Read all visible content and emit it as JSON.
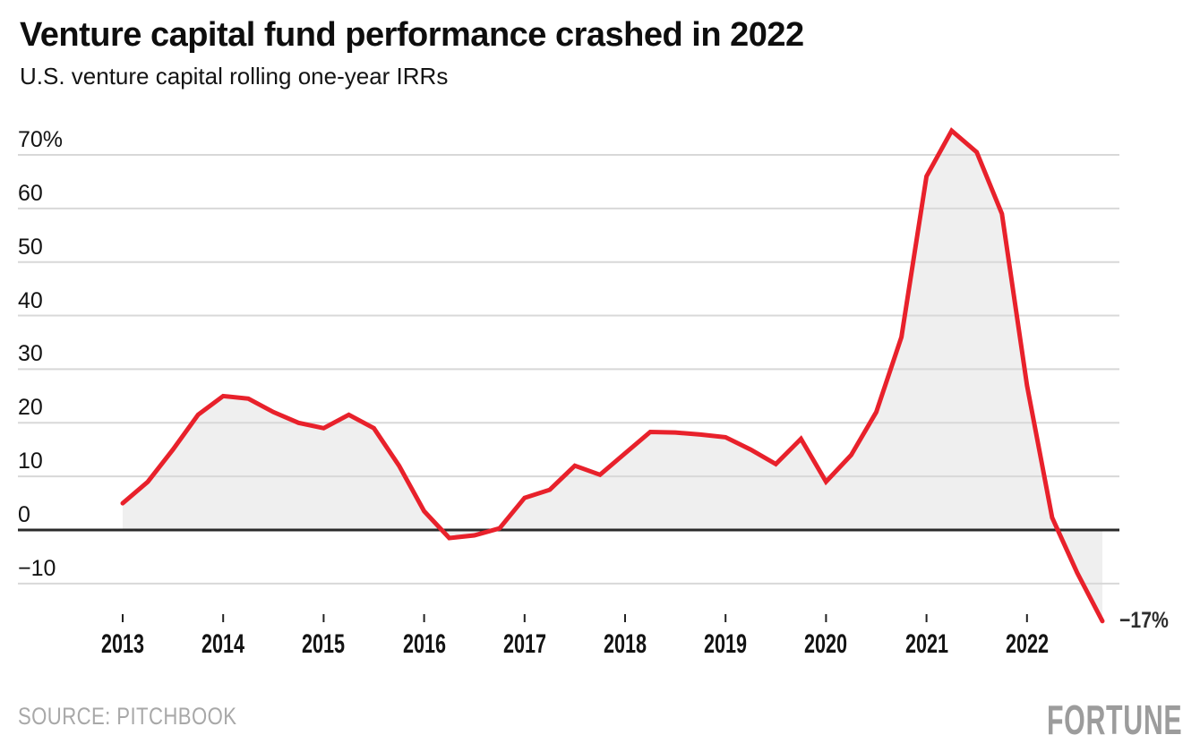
{
  "chart_data": {
    "type": "area",
    "title": "Venture capital fund performance crashed in 2022",
    "subtitle": "U.S. venture capital rolling one-year IRRs",
    "series_name": "U.S. venture capital rolling one-year IRR (%)",
    "x_unit": "quarter (decimal years)",
    "x": [
      2013.0,
      2013.25,
      2013.5,
      2013.75,
      2014.0,
      2014.25,
      2014.5,
      2014.75,
      2015.0,
      2015.25,
      2015.5,
      2015.75,
      2016.0,
      2016.25,
      2016.5,
      2016.75,
      2017.0,
      2017.25,
      2017.5,
      2017.75,
      2018.0,
      2018.25,
      2018.5,
      2018.75,
      2019.0,
      2019.25,
      2019.5,
      2019.75,
      2020.0,
      2020.25,
      2020.5,
      2020.75,
      2021.0,
      2021.25,
      2021.5,
      2021.75,
      2022.0,
      2022.25,
      2022.5,
      2022.75
    ],
    "values": [
      5,
      9,
      15,
      21.5,
      25,
      24.5,
      22,
      20,
      19,
      21.5,
      19,
      12,
      3.5,
      -1.5,
      -1,
      0.3,
      6,
      7.5,
      12,
      10.3,
      14.3,
      18.3,
      18.2,
      17.8,
      17.3,
      15,
      12.3,
      17,
      9,
      14,
      22,
      36,
      66,
      74.5,
      70.5,
      59,
      27,
      2.3,
      -8,
      -17
    ],
    "baseline": 0,
    "ylim": [
      -20,
      75
    ],
    "xlim": [
      2013,
      2022.75
    ],
    "grid": "horizontal",
    "legend": "none",
    "y_ticks": [
      {
        "value": 70,
        "label": "70%"
      },
      {
        "value": 60,
        "label": "60"
      },
      {
        "value": 50,
        "label": "50"
      },
      {
        "value": 40,
        "label": "40"
      },
      {
        "value": 30,
        "label": "30"
      },
      {
        "value": 20,
        "label": "20"
      },
      {
        "value": 10,
        "label": "10"
      },
      {
        "value": 0,
        "label": "0"
      },
      {
        "value": -10,
        "label": "−10"
      }
    ],
    "x_ticks": [
      {
        "value": 2013,
        "label": "2013"
      },
      {
        "value": 2014,
        "label": "2014"
      },
      {
        "value": 2015,
        "label": "2015"
      },
      {
        "value": 2016,
        "label": "2016"
      },
      {
        "value": 2017,
        "label": "2017"
      },
      {
        "value": 2018,
        "label": "2018"
      },
      {
        "value": 2019,
        "label": "2019"
      },
      {
        "value": 2020,
        "label": "2020"
      },
      {
        "value": 2021,
        "label": "2021"
      },
      {
        "value": 2022,
        "label": "2022"
      }
    ],
    "annotation": {
      "label": "−17%",
      "x": 2022.75,
      "value": -17
    },
    "colors": {
      "line": "#e8212b",
      "area_fill": "#efefef",
      "gridline": "#d8d8d8",
      "zero_line": "#2a2a2a",
      "tick_mark": "#222222",
      "axis_text": "#131313",
      "annotation_text": "#2e2e2e",
      "muted_text": "#a8a8a8",
      "logo_text": "#9c9c9c"
    }
  },
  "footer": {
    "source": "SOURCE: PITCHBOOK",
    "logo": "FORTUNE"
  }
}
